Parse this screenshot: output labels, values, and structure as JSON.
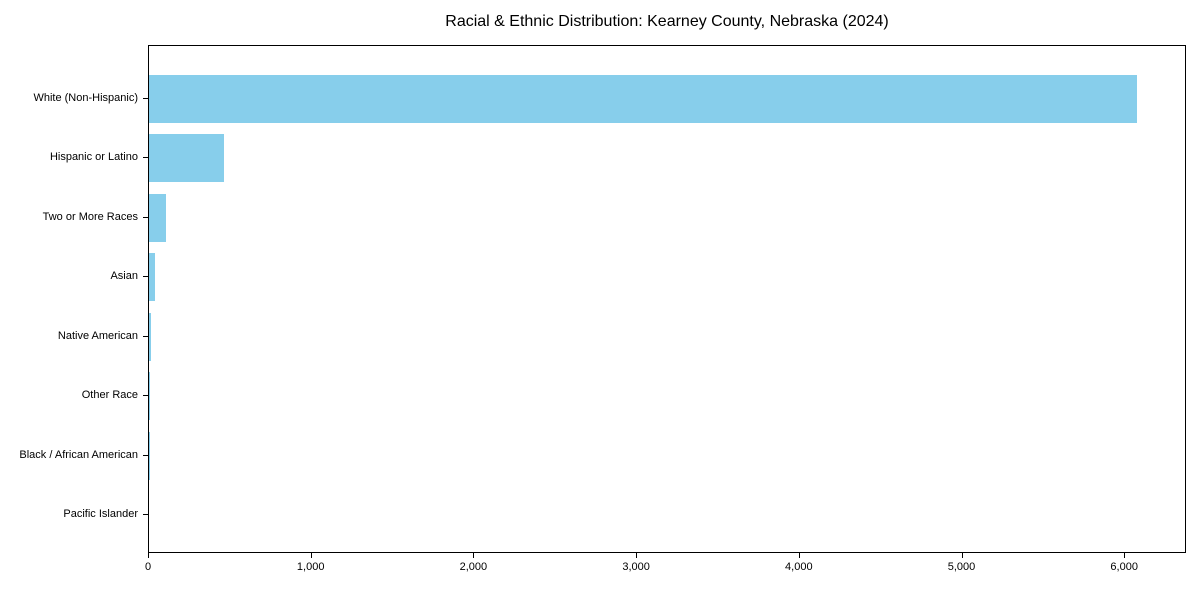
{
  "chart_data": {
    "type": "bar",
    "orientation": "horizontal",
    "title": "Racial & Ethnic Distribution: Kearney County, Nebraska (2024)",
    "categories": [
      "White (Non-Hispanic)",
      "Hispanic or Latino",
      "Two or More Races",
      "Asian",
      "Native American",
      "Other Race",
      "Black / African American",
      "Pacific Islander"
    ],
    "values": [
      6070,
      460,
      105,
      37,
      15,
      5,
      3,
      0
    ],
    "xlabel": "",
    "ylabel": "",
    "xlim": [
      0,
      6380
    ],
    "x_ticks": [
      0,
      1000,
      2000,
      3000,
      4000,
      5000,
      6000
    ],
    "x_tick_labels": [
      "0",
      "1,000",
      "2,000",
      "3,000",
      "4,000",
      "5,000",
      "6,000"
    ],
    "bar_color": "#87CEEB",
    "frame_color": "#000000",
    "grid": false,
    "legend_position": "none"
  }
}
